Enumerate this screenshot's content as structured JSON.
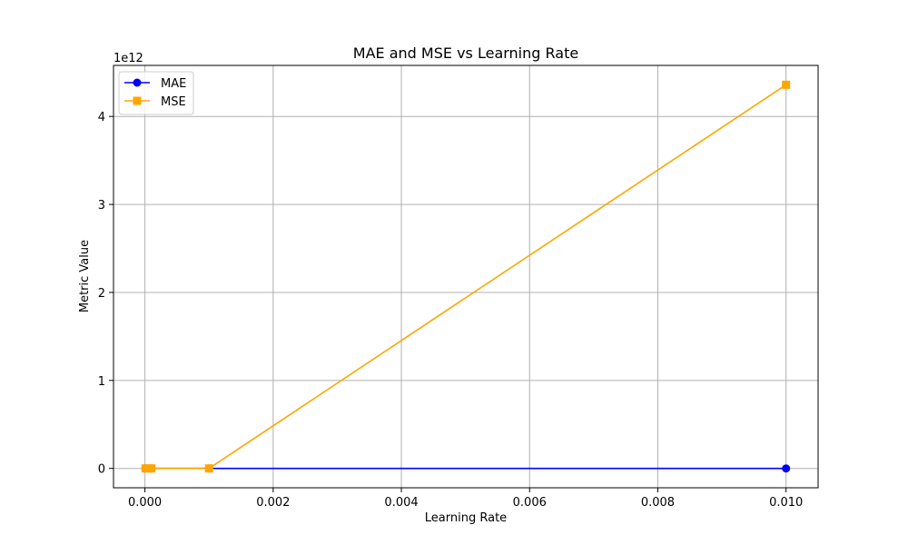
{
  "chart_data": {
    "type": "line",
    "title": "MAE and MSE vs Learning Rate",
    "xlabel": "Learning Rate",
    "ylabel": "Metric Value",
    "y_offset_text": "1e12",
    "x": [
      1e-05,
      0.0001,
      0.001,
      0.01
    ],
    "xlim": [
      -0.00049,
      0.0105
    ],
    "ylim": [
      -0.22,
      4.58
    ],
    "y_unit_multiplier": 1000000000000.0,
    "x_ticks": [
      0.0,
      0.002,
      0.004,
      0.006,
      0.008,
      0.01
    ],
    "x_tick_labels": [
      "0.000",
      "0.002",
      "0.004",
      "0.006",
      "0.008",
      "0.010"
    ],
    "y_ticks": [
      0,
      1,
      2,
      3,
      4
    ],
    "y_tick_labels": [
      "0",
      "1",
      "2",
      "3",
      "4"
    ],
    "grid": true,
    "legend_position": "top-left",
    "series": [
      {
        "name": "MAE",
        "values": [
          0.0,
          0.0,
          0.0,
          0.0
        ],
        "color": "#0000ff",
        "marker": "circle"
      },
      {
        "name": "MSE",
        "values": [
          0.0,
          0.0,
          0.0,
          4.36
        ],
        "color": "#ffa500",
        "marker": "square"
      }
    ]
  }
}
